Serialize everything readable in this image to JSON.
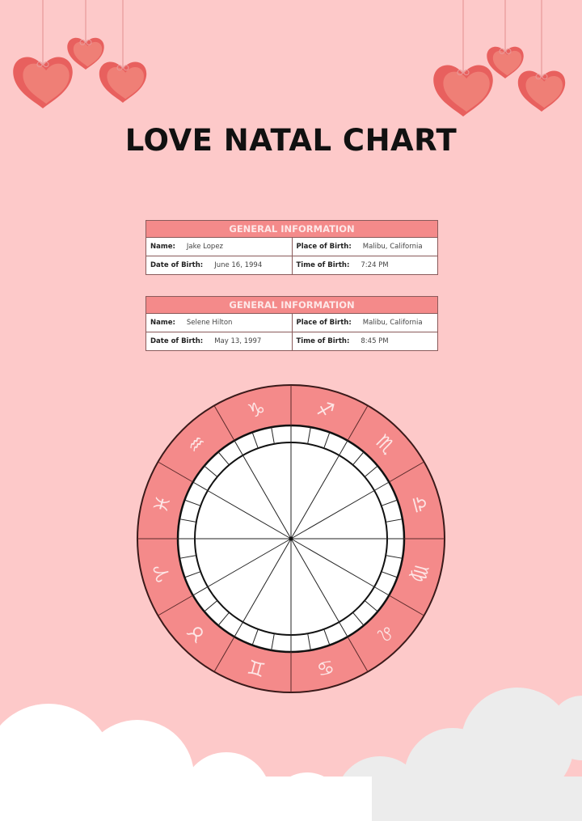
{
  "title": "LOVE NATAL CHART",
  "colors": {
    "background": "#fdc9c9",
    "accent": "#f48a8a",
    "heart": "#e8605e",
    "cloud": "#ffffff"
  },
  "tables": [
    {
      "header": "GENERAL INFORMATION",
      "rows": [
        [
          {
            "label": "Name:",
            "value": "Jake Lopez"
          },
          {
            "label": "Place of Birth:",
            "value": "Malibu, California"
          }
        ],
        [
          {
            "label": "Date of Birth:",
            "value": "June 16, 1994"
          },
          {
            "label": "Time of Birth:",
            "value": "7:24 PM"
          }
        ]
      ]
    },
    {
      "header": "GENERAL INFORMATION",
      "rows": [
        [
          {
            "label": "Name:",
            "value": "Selene Hilton"
          },
          {
            "label": "Place of Birth:",
            "value": "Malibu, California"
          }
        ],
        [
          {
            "label": "Date of Birth:",
            "value": "May 13, 1997"
          },
          {
            "label": "Time of Birth:",
            "value": "8:45 PM"
          }
        ]
      ]
    }
  ],
  "wheel": {
    "signs_clockwise_from_top_right": [
      {
        "name": "sagittarius",
        "glyph": "♐︎"
      },
      {
        "name": "scorpio",
        "glyph": "♏︎"
      },
      {
        "name": "libra",
        "glyph": "♎︎"
      },
      {
        "name": "virgo",
        "glyph": "♍︎"
      },
      {
        "name": "leo",
        "glyph": "♌︎"
      },
      {
        "name": "cancer",
        "glyph": "♋︎"
      },
      {
        "name": "gemini",
        "glyph": "♊︎"
      },
      {
        "name": "taurus",
        "glyph": "♉︎"
      },
      {
        "name": "aries",
        "glyph": "♈︎"
      },
      {
        "name": "pisces",
        "glyph": "♓︎"
      },
      {
        "name": "aquarius",
        "glyph": "♒︎"
      },
      {
        "name": "capricorn",
        "glyph": "♑︎"
      }
    ],
    "houses": 12,
    "degree_ticks_per_sign": 3
  }
}
